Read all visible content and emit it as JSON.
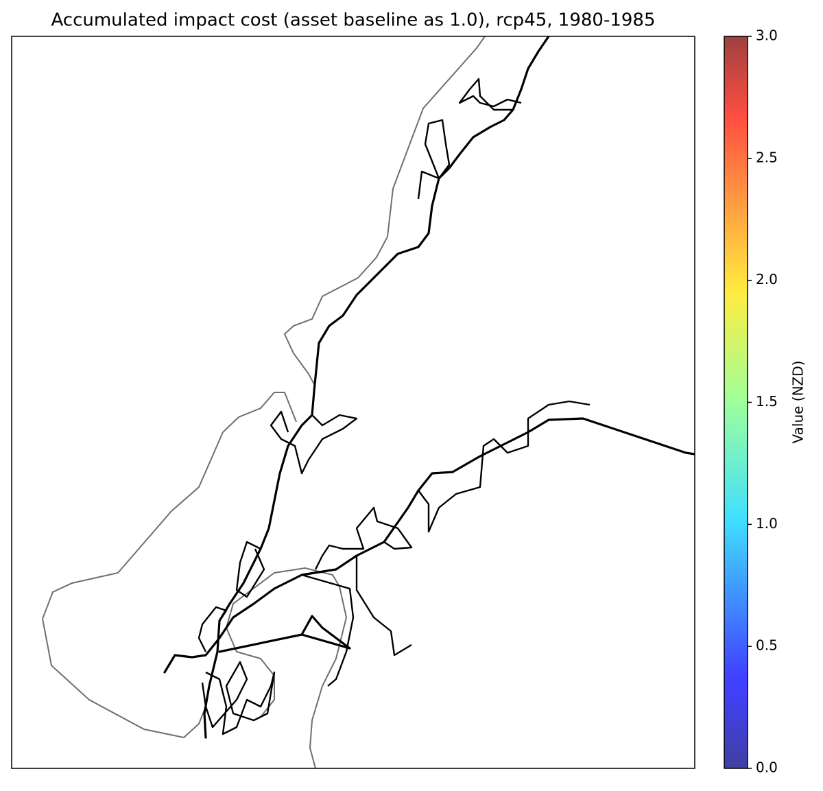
{
  "chart_data": {
    "type": "map",
    "title": "Accumulated impact cost (asset baseline as 1.0), rcp45, 1980-1985",
    "colorbar": {
      "label": "Value (NZD)",
      "colormap": "jet",
      "lim": [
        0,
        3
      ],
      "ticks": [
        {
          "value": 0,
          "label": "0.0"
        },
        {
          "value": 0.5,
          "label": "0.5"
        },
        {
          "value": 1,
          "label": "1.0"
        },
        {
          "value": 1.5,
          "label": "1.5"
        },
        {
          "value": 2,
          "label": "2.0"
        },
        {
          "value": 2.5,
          "label": "2.5"
        },
        {
          "value": 3,
          "label": "3.0"
        }
      ]
    }
  }
}
